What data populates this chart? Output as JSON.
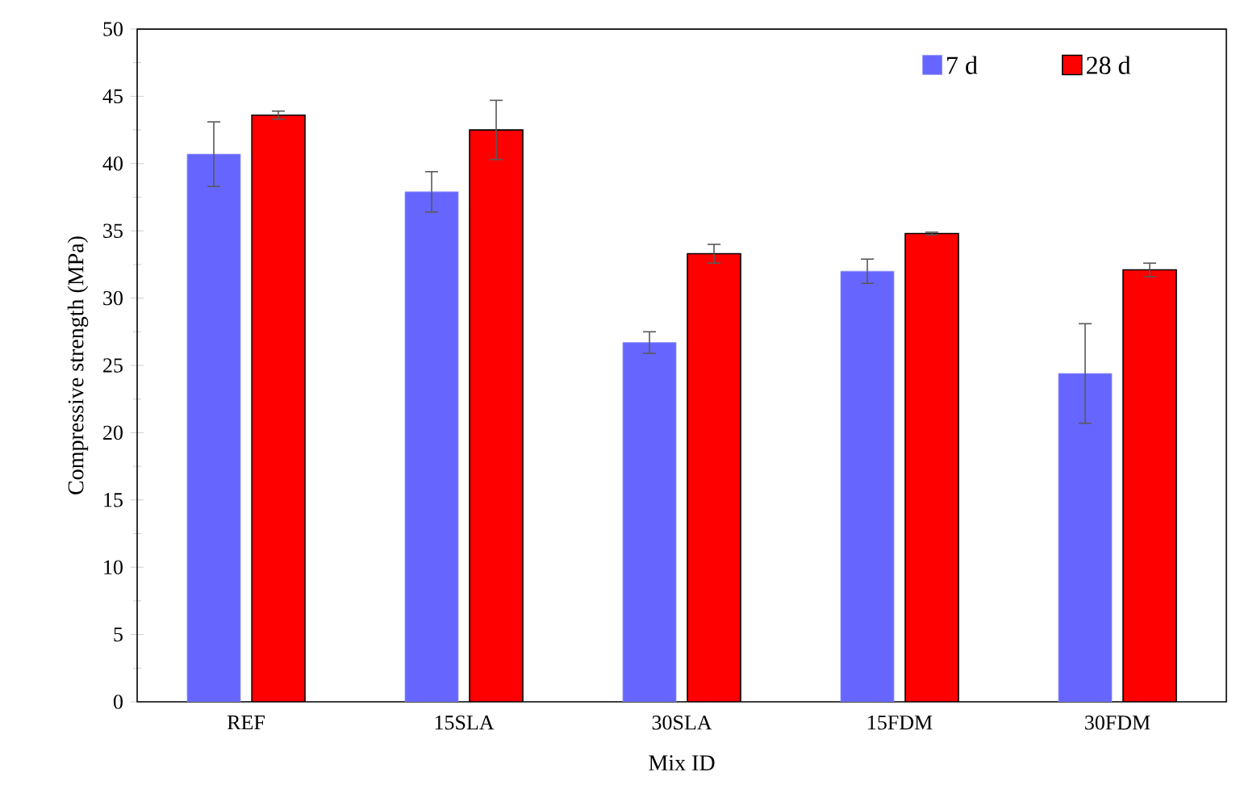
{
  "chart_data": {
    "type": "bar",
    "xlabel": "Mix ID",
    "ylabel": "Compressive strength (MPa)",
    "categories": [
      "REF",
      "15SLA",
      "30SLA",
      "15FDM",
      "30FDM"
    ],
    "series": [
      {
        "name": "7 d",
        "color": "#6666ff",
        "values": [
          40.7,
          37.9,
          26.7,
          32.0,
          24.4
        ],
        "errors": [
          2.4,
          1.5,
          0.8,
          0.9,
          3.7
        ]
      },
      {
        "name": "28 d",
        "color": "#ff0000",
        "values": [
          43.6,
          42.5,
          33.3,
          34.8,
          32.1
        ],
        "errors": [
          0.3,
          2.2,
          0.7,
          0.1,
          0.5
        ]
      }
    ],
    "ylim": [
      0,
      50
    ],
    "yticks": [
      0,
      5,
      10,
      15,
      20,
      25,
      30,
      35,
      40,
      45,
      50
    ],
    "legend": "top right",
    "grid": false
  }
}
